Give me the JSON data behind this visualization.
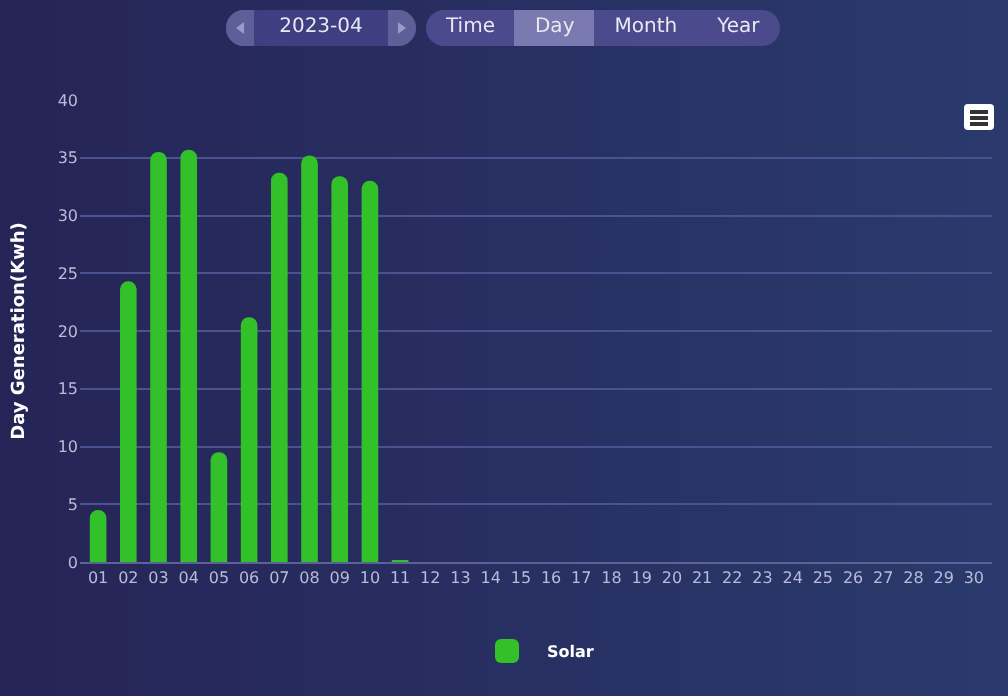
{
  "chart_data": {
    "type": "bar",
    "ylabel": "Day Generation(Kwh)",
    "categories": [
      "01",
      "02",
      "03",
      "04",
      "05",
      "06",
      "07",
      "08",
      "09",
      "10",
      "11",
      "12",
      "13",
      "14",
      "15",
      "16",
      "17",
      "18",
      "19",
      "20",
      "21",
      "22",
      "23",
      "24",
      "25",
      "26",
      "27",
      "28",
      "29",
      "30"
    ],
    "series": [
      {
        "name": "Solar",
        "color": "#33c12a",
        "values": [
          4.5,
          24.3,
          35.5,
          35.7,
          9.5,
          21.2,
          33.7,
          35.2,
          33.4,
          33.0,
          0.1,
          0,
          0,
          0,
          0,
          0,
          0,
          0,
          0,
          0,
          0,
          0,
          0,
          0,
          0,
          0,
          0,
          0,
          0,
          0
        ]
      }
    ],
    "ylim": [
      0,
      40
    ],
    "yticks": [
      0,
      5,
      10,
      15,
      20,
      25,
      30,
      35,
      40
    ],
    "grid": "y",
    "legend": "bottom",
    "annotations": [
      "2023-04",
      "Time",
      "Day",
      "Month",
      "Year"
    ]
  }
}
